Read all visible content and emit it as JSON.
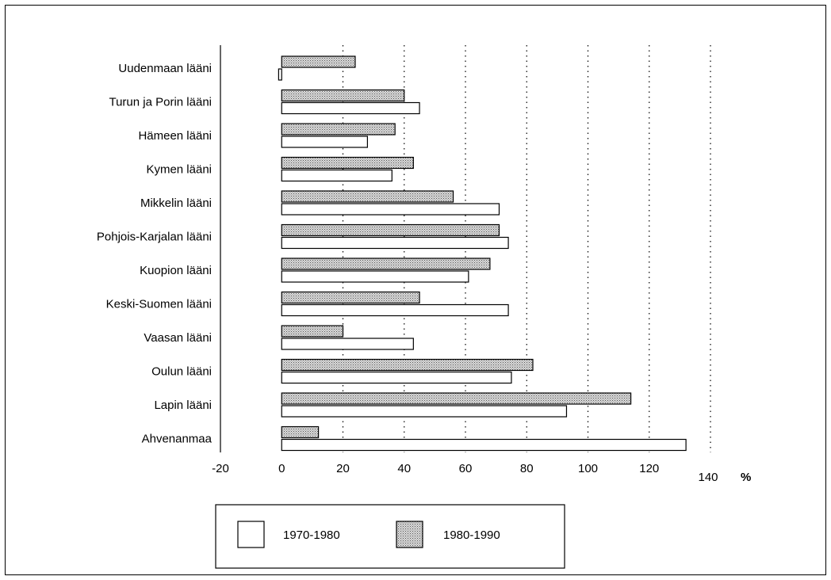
{
  "chart_data": {
    "type": "bar",
    "orientation": "horizontal",
    "categories": [
      "Uudenmaan lääni",
      "Turun ja Porin lääni",
      "Hämeen lääni",
      "Kymen lääni",
      "Mikkelin lääni",
      "Pohjois-Karjalan lääni",
      "Kuopion lääni",
      "Keski-Suomen lääni",
      "Vaasan lääni",
      "Oulun lääni",
      "Lapin lääni",
      "Ahvenanmaa"
    ],
    "series": [
      {
        "name": "1970-1980",
        "color": "#ffffff",
        "values": [
          -1,
          45,
          28,
          36,
          71,
          74,
          61,
          74,
          43,
          75,
          93,
          132
        ]
      },
      {
        "name": "1980-1990",
        "color": "#c8c8c8",
        "values": [
          24,
          40,
          37,
          43,
          56,
          71,
          68,
          45,
          20,
          82,
          114,
          12
        ]
      }
    ],
    "xlim": [
      -20,
      140
    ],
    "xticks": [
      -20,
      0,
      20,
      40,
      60,
      80,
      100,
      120,
      140
    ],
    "unit": "%",
    "grid": "vertical dotted",
    "legend": "bottom"
  }
}
